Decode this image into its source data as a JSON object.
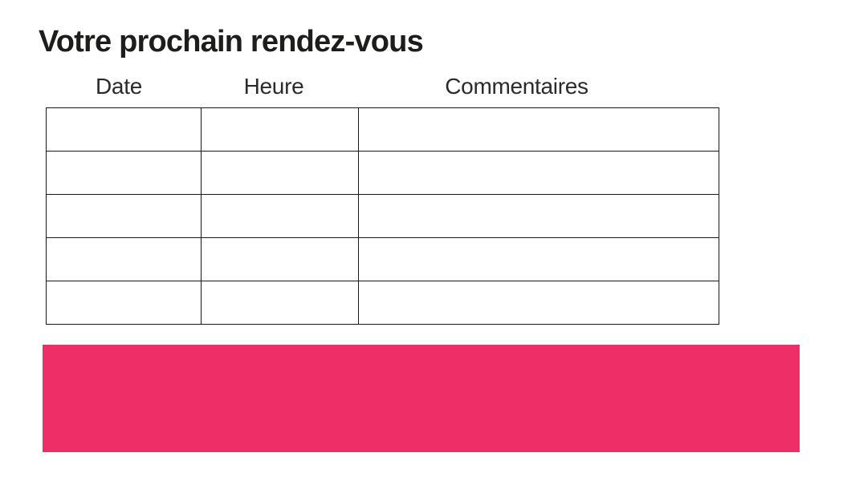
{
  "page": {
    "title": "Votre prochain rendez-vous"
  },
  "table": {
    "columns": [
      "Date",
      "Heure",
      "Commentaires"
    ],
    "rows": [
      [
        "",
        "",
        ""
      ],
      [
        "",
        "",
        ""
      ],
      [
        "",
        "",
        ""
      ],
      [
        "",
        "",
        ""
      ],
      [
        "",
        "",
        ""
      ]
    ]
  },
  "colors": {
    "accent": "#ed2e67",
    "table_border": "#1a1a1a",
    "text": "#1d1d1b"
  }
}
